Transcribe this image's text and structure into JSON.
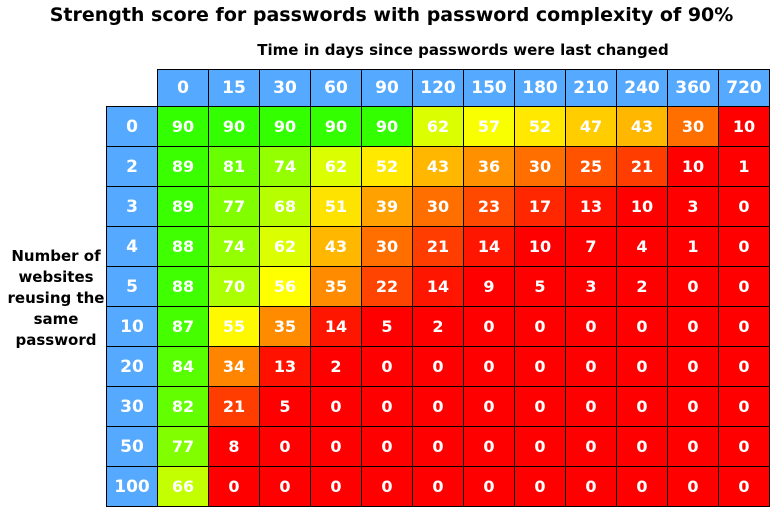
{
  "chart_data": {
    "type": "heatmap",
    "title": "Strength score for passwords with password complexity of 90%",
    "xlabel": "Time in days since passwords were last changed",
    "ylabel": "Number of websites reusing the same password",
    "x": [
      "0",
      "15",
      "30",
      "60",
      "90",
      "120",
      "150",
      "180",
      "210",
      "240",
      "360",
      "720"
    ],
    "y": [
      "0",
      "2",
      "3",
      "4",
      "5",
      "10",
      "20",
      "30",
      "50",
      "100"
    ],
    "values": [
      [
        90,
        90,
        90,
        90,
        90,
        62,
        57,
        52,
        47,
        43,
        30,
        10
      ],
      [
        89,
        81,
        74,
        62,
        52,
        43,
        36,
        30,
        25,
        21,
        10,
        1
      ],
      [
        89,
        77,
        68,
        51,
        39,
        30,
        23,
        17,
        13,
        10,
        3,
        0
      ],
      [
        88,
        74,
        62,
        43,
        30,
        21,
        14,
        10,
        7,
        4,
        1,
        0
      ],
      [
        88,
        70,
        56,
        35,
        22,
        14,
        9,
        5,
        3,
        2,
        0,
        0
      ],
      [
        87,
        55,
        35,
        14,
        5,
        2,
        0,
        0,
        0,
        0,
        0,
        0
      ],
      [
        84,
        34,
        13,
        2,
        0,
        0,
        0,
        0,
        0,
        0,
        0,
        0
      ],
      [
        82,
        21,
        5,
        0,
        0,
        0,
        0,
        0,
        0,
        0,
        0,
        0
      ],
      [
        77,
        8,
        0,
        0,
        0,
        0,
        0,
        0,
        0,
        0,
        0,
        0
      ],
      [
        66,
        0,
        0,
        0,
        0,
        0,
        0,
        0,
        0,
        0,
        0,
        0
      ]
    ],
    "colorscale": [
      "#ff0000",
      "#ffff00",
      "#33ff00"
    ],
    "header_color": "#55aaff"
  }
}
